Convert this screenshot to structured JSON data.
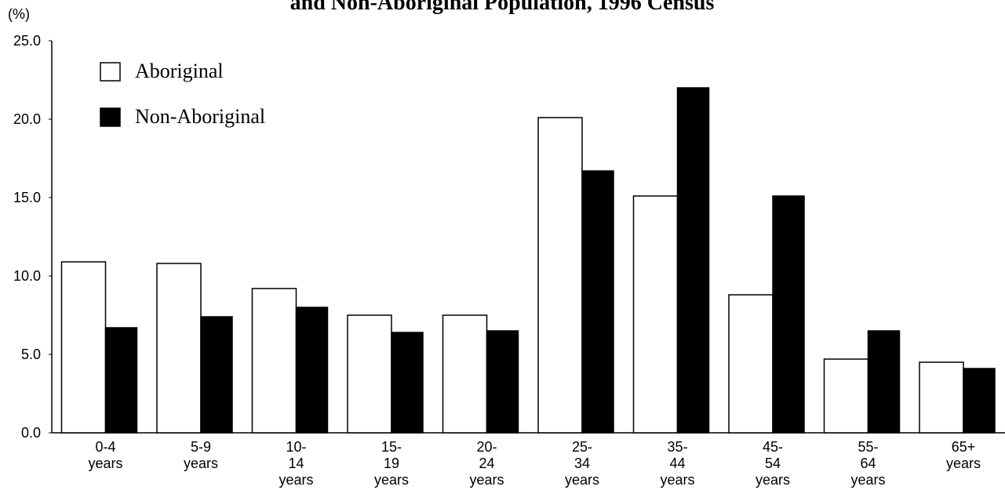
{
  "chart_data": {
    "type": "bar",
    "title": "and Non-Aboriginal Population, 1996 Census",
    "y_label": "(%)",
    "categories": [
      [
        "0-4",
        "years"
      ],
      [
        "5-9",
        "years"
      ],
      [
        "10-",
        "14",
        "years"
      ],
      [
        "15-",
        "19",
        "years"
      ],
      [
        "20-",
        "24",
        "years"
      ],
      [
        "25-",
        "34",
        "years"
      ],
      [
        "35-",
        "44",
        "years"
      ],
      [
        "45-",
        "54",
        "years"
      ],
      [
        "55-",
        "64",
        "years"
      ],
      [
        "65+",
        "years"
      ]
    ],
    "series": [
      {
        "name": "Aboriginal",
        "color": "#ffffff",
        "values": [
          10.9,
          10.8,
          9.2,
          7.5,
          7.5,
          20.1,
          15.1,
          8.8,
          4.7,
          4.5
        ]
      },
      {
        "name": "Non-Aboriginal",
        "color": "#000000",
        "values": [
          6.7,
          7.4,
          8.0,
          6.4,
          6.5,
          16.7,
          22.0,
          15.1,
          6.5,
          4.1
        ]
      }
    ],
    "ylim": [
      0,
      25
    ],
    "yticks": [
      {
        "value": 0,
        "label": "0.0"
      },
      {
        "value": 5,
        "label": "5.0"
      },
      {
        "value": 10,
        "label": "10.0"
      },
      {
        "value": 15,
        "label": "15.0"
      },
      {
        "value": 20,
        "label": "20.0"
      },
      {
        "value": 25,
        "label": "25.0"
      }
    ],
    "legend": "top-left"
  }
}
